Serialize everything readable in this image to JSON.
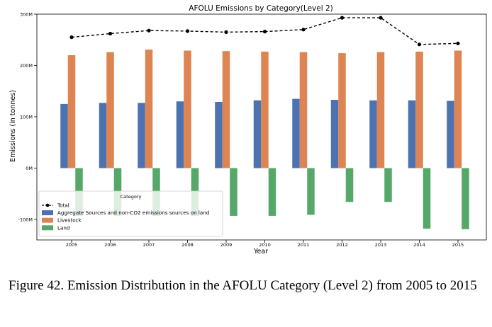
{
  "figure": {
    "caption": "Figure 42.  Emission Distribution in the AFOLU Category (Level 2) from 2005 to 2015"
  },
  "colors": {
    "aggregate": "#4c72b0",
    "livestock": "#dd8452",
    "land": "#55a868",
    "total": "#000000"
  },
  "chart_data": {
    "type": "bar",
    "title": "AFOLU Emissions by Category(Level 2)",
    "xlabel": "Year",
    "ylabel": "Emissions (in tonnes)",
    "categories": [
      "2005",
      "2006",
      "2007",
      "2008",
      "2009",
      "2010",
      "2011",
      "2012",
      "2013",
      "2014",
      "2015"
    ],
    "ylim": [
      -140000000,
      300000000
    ],
    "yticks": [
      -100000000,
      0,
      100000000,
      200000000,
      300000000
    ],
    "ytick_labels": [
      "-100M",
      "0M",
      "100M",
      "200M",
      "300M"
    ],
    "grid": false,
    "legend": {
      "title": "Category",
      "placement": "lower-left"
    },
    "series": [
      {
        "name": "Total",
        "type": "line",
        "style": "dashed",
        "marker": "dot",
        "values": [
          255000000,
          262000000,
          268000000,
          267000000,
          265000000,
          266000000,
          270000000,
          293000000,
          293000000,
          241000000,
          243000000
        ]
      },
      {
        "name": "Aggregate Sources and non-CO2 emissions sources on land",
        "type": "bar",
        "values": [
          125000000,
          127000000,
          127000000,
          130000000,
          129000000,
          132000000,
          135000000,
          133000000,
          132000000,
          132000000,
          131000000
        ]
      },
      {
        "name": "Livestock",
        "type": "bar",
        "values": [
          220000000,
          226000000,
          231000000,
          229000000,
          228000000,
          227000000,
          226000000,
          224000000,
          226000000,
          227000000,
          229000000
        ]
      },
      {
        "name": "Land",
        "type": "bar",
        "values": [
          -93000000,
          -93000000,
          -93000000,
          -93000000,
          -93000000,
          -93000000,
          -91000000,
          -66000000,
          -66000000,
          -118000000,
          -119000000
        ]
      }
    ]
  }
}
